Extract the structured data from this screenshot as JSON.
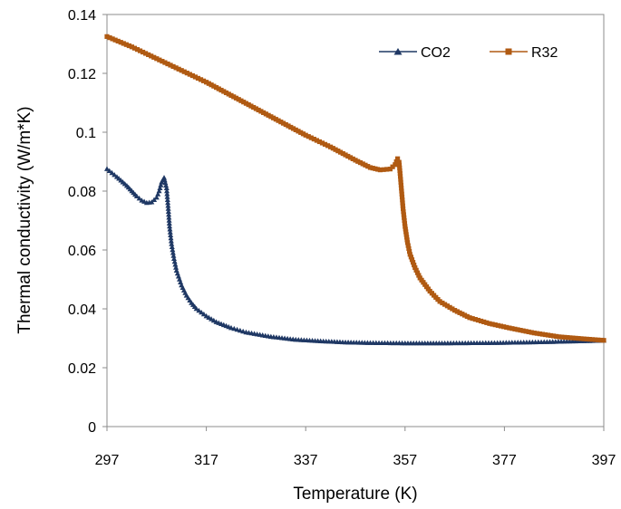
{
  "chart_data": {
    "type": "line",
    "title": "",
    "xlabel": "Temperature (K)",
    "ylabel": "Thermal conductivity (W/m*K)",
    "xlim": [
      297,
      397
    ],
    "ylim": [
      0,
      0.14
    ],
    "x_ticks": [
      "297",
      "317",
      "337",
      "357",
      "377",
      "397"
    ],
    "y_ticks": [
      "0",
      "0.02",
      "0.04",
      "0.06",
      "0.08",
      "0.1",
      "0.12",
      "0.14"
    ],
    "grid": false,
    "legend_position": "top-right",
    "series": [
      {
        "name": "CO2",
        "color": "#1f3864",
        "marker": "triangle",
        "points": [
          [
            297,
            0.0875
          ],
          [
            299,
            0.0848
          ],
          [
            301,
            0.0818
          ],
          [
            302,
            0.08
          ],
          [
            303,
            0.0782
          ],
          [
            304,
            0.0768
          ],
          [
            305,
            0.076
          ],
          [
            306,
            0.0762
          ],
          [
            307,
            0.0778
          ],
          [
            307.5,
            0.08
          ],
          [
            308,
            0.083
          ],
          [
            308.5,
            0.0845
          ],
          [
            309,
            0.081
          ],
          [
            309.3,
            0.075
          ],
          [
            309.6,
            0.068
          ],
          [
            310,
            0.062
          ],
          [
            310.5,
            0.057
          ],
          [
            311,
            0.053
          ],
          [
            312,
            0.048
          ],
          [
            313,
            0.0445
          ],
          [
            314,
            0.042
          ],
          [
            315,
            0.04
          ],
          [
            317,
            0.0375
          ],
          [
            319,
            0.0355
          ],
          [
            322,
            0.0335
          ],
          [
            325,
            0.032
          ],
          [
            330,
            0.0305
          ],
          [
            335,
            0.0295
          ],
          [
            340,
            0.029
          ],
          [
            345,
            0.0286
          ],
          [
            350,
            0.0284
          ],
          [
            357,
            0.0283
          ],
          [
            365,
            0.0283
          ],
          [
            375,
            0.0284
          ],
          [
            385,
            0.0287
          ],
          [
            397,
            0.0292
          ]
        ]
      },
      {
        "name": "R32",
        "color": "#b05a12",
        "marker": "square",
        "points": [
          [
            297,
            0.1325
          ],
          [
            302,
            0.129
          ],
          [
            307,
            0.125
          ],
          [
            312,
            0.121
          ],
          [
            317,
            0.117
          ],
          [
            322,
            0.1125
          ],
          [
            327,
            0.108
          ],
          [
            332,
            0.1035
          ],
          [
            337,
            0.099
          ],
          [
            342,
            0.095
          ],
          [
            347,
            0.0905
          ],
          [
            350,
            0.088
          ],
          [
            352,
            0.0872
          ],
          [
            354,
            0.0875
          ],
          [
            355,
            0.089
          ],
          [
            355.5,
            0.091
          ],
          [
            355.8,
            0.0898
          ],
          [
            356,
            0.086
          ],
          [
            356.3,
            0.08
          ],
          [
            356.6,
            0.074
          ],
          [
            357,
            0.068
          ],
          [
            357.5,
            0.0625
          ],
          [
            358,
            0.0585
          ],
          [
            359,
            0.054
          ],
          [
            360,
            0.0505
          ],
          [
            362,
            0.046
          ],
          [
            364,
            0.0425
          ],
          [
            367,
            0.0395
          ],
          [
            370,
            0.037
          ],
          [
            374,
            0.035
          ],
          [
            378,
            0.0335
          ],
          [
            383,
            0.0318
          ],
          [
            388,
            0.0305
          ],
          [
            393,
            0.0298
          ],
          [
            397,
            0.0293
          ]
        ]
      }
    ]
  }
}
